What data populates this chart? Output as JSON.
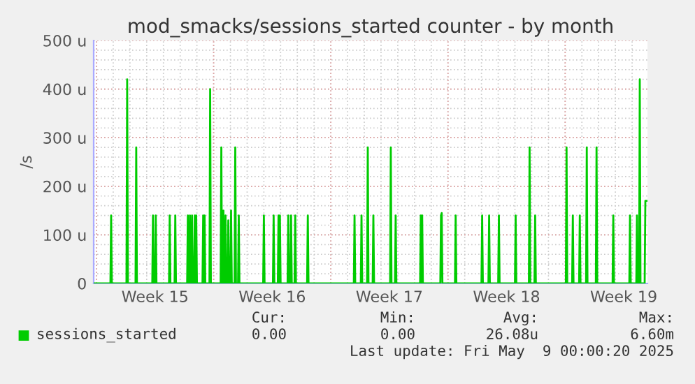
{
  "chart_data": {
    "type": "line",
    "title": "mod_smacks/sessions_started counter - by month",
    "ylabel": "/s",
    "xlim": [
      "2025-04-06T20:00",
      "2025-05-09T22:00"
    ],
    "ylim": [
      0,
      500
    ],
    "xticks": [
      {
        "value": "2025-04-07",
        "label": null
      },
      {
        "value": "2025-04-10T12:00",
        "label": "Week 15"
      },
      {
        "value": "2025-04-14",
        "label": null
      },
      {
        "value": "2025-04-17T12:00",
        "label": "Week 16"
      },
      {
        "value": "2025-04-21",
        "label": null
      },
      {
        "value": "2025-04-24T12:00",
        "label": "Week 17"
      },
      {
        "value": "2025-04-28",
        "label": null
      },
      {
        "value": "2025-05-01T12:00",
        "label": "Week 18"
      },
      {
        "value": "2025-05-05",
        "label": null
      },
      {
        "value": "2025-05-08T12:00",
        "label": "Week 19"
      }
    ],
    "yticks": [
      0,
      {
        "value": 100,
        "label": "100 u"
      },
      {
        "value": 200,
        "label": "200 u"
      },
      {
        "value": 300,
        "label": "300 u"
      },
      {
        "value": 400,
        "label": "400 u"
      },
      {
        "value": 500,
        "label": "500 u"
      }
    ],
    "grid": true,
    "legend": "bottom",
    "marker": "none",
    "line_style": "solid",
    "series": [
      {
        "name": "sessions_started",
        "color": "#00cc00",
        "x": [
          "2025-04-06T20:00",
          "2025-04-07T20:00",
          "2025-04-07T21:00",
          "2025-04-07T22:00",
          "2025-04-08T19:00",
          "2025-04-08T20:00",
          "2025-04-08T21:00",
          "2025-04-09T08:00",
          "2025-04-09T09:00",
          "2025-04-09T10:00",
          "2025-04-10T08:00",
          "2025-04-10T09:00",
          "2025-04-10T10:00",
          "2025-04-10T12:00",
          "2025-04-10T13:00",
          "2025-04-10T14:00",
          "2025-04-11T08:00",
          "2025-04-11T09:00",
          "2025-04-11T10:00",
          "2025-04-11T16:00",
          "2025-04-11T17:00",
          "2025-04-11T18:00",
          "2025-04-12T10:00",
          "2025-04-12T11:00",
          "2025-04-12T12:00",
          "2025-04-12T13:00",
          "2025-04-12T14:00",
          "2025-04-12T15:00",
          "2025-04-12T16:00",
          "2025-04-12T17:00",
          "2025-04-12T18:00",
          "2025-04-12T20:00",
          "2025-04-12T21:00",
          "2025-04-12T22:00",
          "2025-04-12T23:00",
          "2025-04-13T00:00",
          "2025-04-13T08:00",
          "2025-04-13T09:00",
          "2025-04-13T10:00",
          "2025-04-13T11:00",
          "2025-04-13T12:00",
          "2025-04-13T18:00",
          "2025-04-13T19:00",
          "2025-04-13T20:00",
          "2025-04-14T10:00",
          "2025-04-14T11:00",
          "2025-04-14T12:00",
          "2025-04-14T13:00",
          "2025-04-14T14:00",
          "2025-04-14T15:00",
          "2025-04-14T16:00",
          "2025-04-14T17:00",
          "2025-04-14T18:00",
          "2025-04-14T20:00",
          "2025-04-14T21:00",
          "2025-04-14T22:00",
          "2025-04-15T00:00",
          "2025-04-15T01:00",
          "2025-04-15T02:00",
          "2025-04-15T06:00",
          "2025-04-15T07:00",
          "2025-04-15T08:00",
          "2025-04-15T11:00",
          "2025-04-15T12:00",
          "2025-04-15T13:00",
          "2025-04-16T23:00",
          "2025-04-17T00:00",
          "2025-04-17T01:00",
          "2025-04-17T13:00",
          "2025-04-17T14:00",
          "2025-04-17T15:00",
          "2025-04-17T20:00",
          "2025-04-17T21:00",
          "2025-04-17T22:00",
          "2025-04-17T23:00",
          "2025-04-18T00:00",
          "2025-04-18T10:00",
          "2025-04-18T11:00",
          "2025-04-18T12:00",
          "2025-04-18T14:00",
          "2025-04-18T15:00",
          "2025-04-18T16:00",
          "2025-04-18T20:00",
          "2025-04-18T21:00",
          "2025-04-18T22:00",
          "2025-04-19T14:00",
          "2025-04-19T15:00",
          "2025-04-19T16:00",
          "2025-04-22T09:00",
          "2025-04-22T10:00",
          "2025-04-22T11:00",
          "2025-04-22T19:00",
          "2025-04-22T20:00",
          "2025-04-22T21:00",
          "2025-04-23T04:00",
          "2025-04-23T05:00",
          "2025-04-23T06:00",
          "2025-04-23T12:00",
          "2025-04-23T13:00",
          "2025-04-23T14:00",
          "2025-04-24T13:00",
          "2025-04-24T14:00",
          "2025-04-24T15:00",
          "2025-04-24T20:00",
          "2025-04-24T21:00",
          "2025-04-24T22:00",
          "2025-04-26T08:00",
          "2025-04-26T09:00",
          "2025-04-26T10:00",
          "2025-04-26T11:00",
          "2025-04-26T12:00",
          "2025-04-27T13:00",
          "2025-04-27T14:00",
          "2025-04-27T15:00",
          "2025-04-27T16:00",
          "2025-04-28T10:00",
          "2025-04-28T11:00",
          "2025-04-28T12:00",
          "2025-04-30T00:00",
          "2025-04-30T01:00",
          "2025-04-30T02:00",
          "2025-04-30T10:00",
          "2025-04-30T11:00",
          "2025-04-30T12:00",
          "2025-05-01T00:00",
          "2025-05-01T01:00",
          "2025-05-01T02:00",
          "2025-05-02T00:00",
          "2025-05-02T01:00",
          "2025-05-02T02:00",
          "2025-05-02T20:00",
          "2025-05-02T21:00",
          "2025-05-02T22:00",
          "2025-05-03T04:00",
          "2025-05-03T05:00",
          "2025-05-03T06:00",
          "2025-05-05T01:00",
          "2025-05-05T02:00",
          "2025-05-05T03:00",
          "2025-05-05T10:00",
          "2025-05-05T11:00",
          "2025-05-05T12:00",
          "2025-05-05T20:00",
          "2025-05-05T21:00",
          "2025-05-05T22:00",
          "2025-05-06T06:00",
          "2025-05-06T07:00",
          "2025-05-06T08:00",
          "2025-05-06T20:00",
          "2025-05-06T21:00",
          "2025-05-06T22:00",
          "2025-05-07T20:00",
          "2025-05-07T21:00",
          "2025-05-07T22:00",
          "2025-05-08T20:00",
          "2025-05-08T21:00",
          "2025-05-08T22:00",
          "2025-05-09T06:00",
          "2025-05-09T07:00",
          "2025-05-09T08:00",
          "2025-05-09T10:00",
          "2025-05-09T11:00",
          "2025-05-09T12:00",
          "2025-05-09T18:00",
          "2025-05-09T19:00",
          "2025-05-09T22:00"
        ],
        "values": [
          0,
          0,
          140,
          0,
          0,
          420,
          0,
          0,
          280,
          0,
          0,
          140,
          0,
          0,
          140,
          0,
          0,
          140,
          0,
          0,
          140,
          0,
          0,
          140,
          0,
          0,
          140,
          0,
          0,
          140,
          0,
          0,
          140,
          0,
          140,
          0,
          0,
          140,
          0,
          140,
          0,
          0,
          400,
          0,
          0,
          280,
          0,
          0,
          150,
          0,
          0,
          140,
          0,
          0,
          130,
          0,
          0,
          150,
          0,
          0,
          280,
          0,
          0,
          140,
          0,
          0,
          140,
          0,
          0,
          140,
          0,
          0,
          140,
          0,
          140,
          0,
          0,
          140,
          0,
          0,
          140,
          0,
          0,
          140,
          0,
          0,
          140,
          0,
          0,
          140,
          0,
          0,
          140,
          0,
          0,
          280,
          0,
          0,
          140,
          0,
          0,
          280,
          0,
          0,
          140,
          0,
          0,
          140,
          0,
          140,
          0,
          0,
          140,
          145,
          0,
          0,
          140,
          0,
          0,
          140,
          0,
          0,
          140,
          0,
          0,
          140,
          0,
          0,
          140,
          0,
          0,
          280,
          0,
          0,
          140,
          0,
          0,
          280,
          0,
          0,
          140,
          0,
          0,
          140,
          0,
          0,
          280,
          0,
          0,
          280,
          0,
          0,
          140,
          0,
          0,
          140,
          0,
          0,
          140,
          0,
          0,
          420,
          0,
          0,
          170,
          170
        ]
      }
    ],
    "annotations": [
      "Cur:",
      "0.00",
      "Min:",
      "0.00",
      "Avg:",
      "26.08u",
      "Max:",
      "6.60m",
      "Last update: Fri May  9 00:00:20 2025"
    ]
  }
}
